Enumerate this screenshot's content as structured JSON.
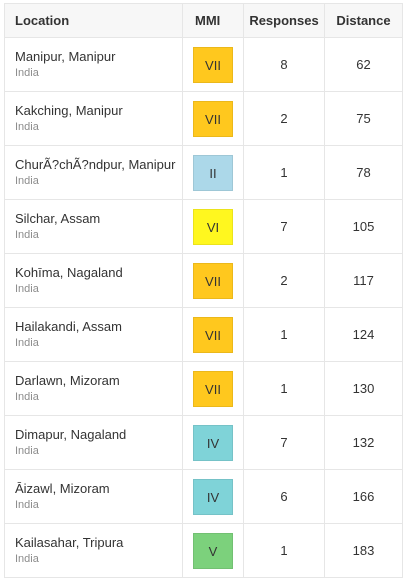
{
  "table": {
    "headers": {
      "location": "Location",
      "mmi": "MMI",
      "responses": "Responses",
      "distance": "Distance"
    },
    "rows": [
      {
        "place": "Manipur, Manipur",
        "country": "India",
        "mmi": "VII",
        "mmi_color": "#ffc81e",
        "responses": "8",
        "distance": "62"
      },
      {
        "place": "Kakching, Manipur",
        "country": "India",
        "mmi": "VII",
        "mmi_color": "#ffc81e",
        "responses": "2",
        "distance": "75"
      },
      {
        "place": "ChurÃ?chÃ?ndpur, Manipur",
        "country": "India",
        "mmi": "II",
        "mmi_color": "#acd8e9",
        "responses": "1",
        "distance": "78"
      },
      {
        "place": "Silchar, Assam",
        "country": "India",
        "mmi": "VI",
        "mmi_color": "#fff71f",
        "responses": "7",
        "distance": "105"
      },
      {
        "place": "Kohīma, Nagaland",
        "country": "India",
        "mmi": "VII",
        "mmi_color": "#ffc81e",
        "responses": "2",
        "distance": "117"
      },
      {
        "place": "Hailakandi, Assam",
        "country": "India",
        "mmi": "VII",
        "mmi_color": "#ffc81e",
        "responses": "1",
        "distance": "124"
      },
      {
        "place": "Darlawn, Mizoram",
        "country": "India",
        "mmi": "VII",
        "mmi_color": "#ffc81e",
        "responses": "1",
        "distance": "130"
      },
      {
        "place": "Dimapur, Nagaland",
        "country": "India",
        "mmi": "IV",
        "mmi_color": "#7fd3d8",
        "responses": "7",
        "distance": "132"
      },
      {
        "place": "Āizawl, Mizoram",
        "country": "India",
        "mmi": "IV",
        "mmi_color": "#7fd3d8",
        "responses": "6",
        "distance": "166"
      },
      {
        "place": "Kailasahar, Tripura",
        "country": "India",
        "mmi": "V",
        "mmi_color": "#7cd17c",
        "responses": "1",
        "distance": "183"
      }
    ]
  }
}
